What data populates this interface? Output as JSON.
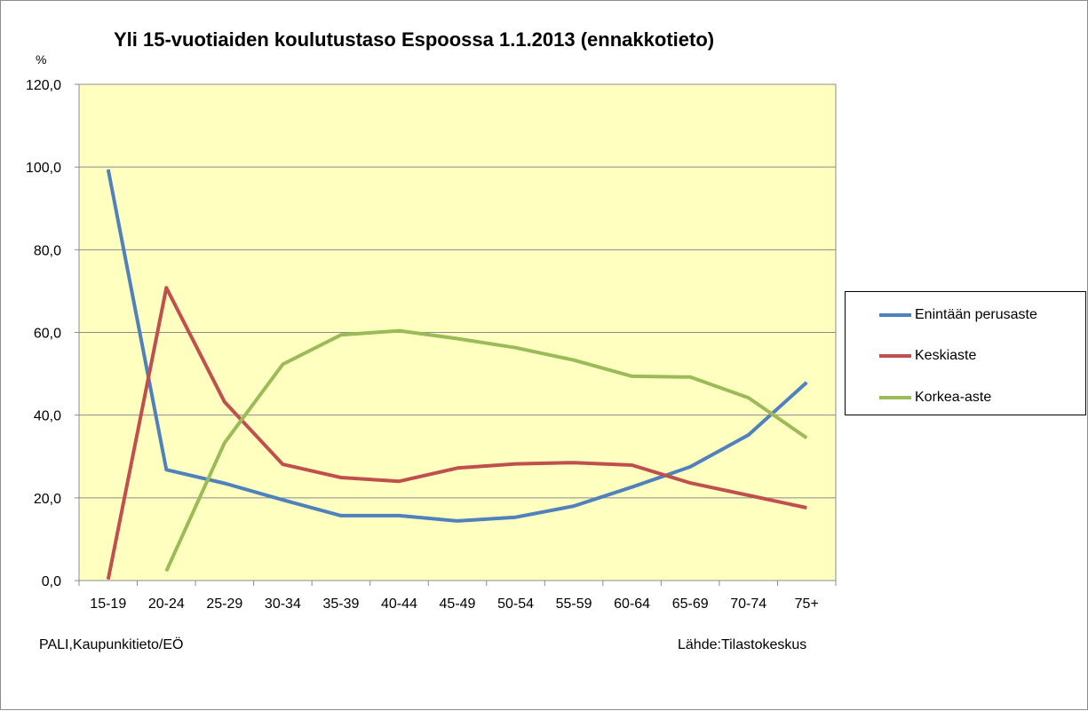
{
  "chart_data": {
    "type": "line",
    "title": "Yli 15-vuotiaiden koulutustaso Espoossa 1.1.2013 (ennakkotieto)",
    "ylabel": "%",
    "xlabel": "",
    "categories": [
      "15-19",
      "20-24",
      "25-29",
      "30-34",
      "35-39",
      "40-44",
      "45-49",
      "50-54",
      "55-59",
      "60-64",
      "65-69",
      "70-74",
      "75+"
    ],
    "ylim": [
      0,
      120
    ],
    "yticks": [
      "0,0",
      "20,0",
      "40,0",
      "60,0",
      "80,0",
      "100,0",
      "120,0"
    ],
    "ytick_values": [
      0,
      20,
      40,
      60,
      80,
      100,
      120
    ],
    "grid": true,
    "plot_background": "#ffffc0",
    "legend_position": "right",
    "series": [
      {
        "name": "Enintään perusaste",
        "color": "#4f81bd",
        "values": [
          99.4,
          26.8,
          23.5,
          19.5,
          15.7,
          15.7,
          14.4,
          15.3,
          18.0,
          22.6,
          27.5,
          35.2,
          47.9
        ]
      },
      {
        "name": "Keskiaste",
        "color": "#c0504d",
        "values": [
          0.3,
          70.8,
          43.2,
          28.1,
          24.9,
          24.0,
          27.2,
          28.2,
          28.5,
          27.9,
          23.6,
          20.6,
          17.6
        ]
      },
      {
        "name": "Korkea-aste",
        "color": "#9bbb59",
        "values": [
          null,
          2.3,
          33.3,
          52.3,
          59.4,
          60.4,
          58.5,
          56.3,
          53.3,
          49.4,
          49.2,
          44.2,
          34.5
        ]
      }
    ]
  },
  "footer": {
    "left": "PALI,Kaupunkitieto/EÖ",
    "right": "Lähde:Tilastokeskus"
  }
}
